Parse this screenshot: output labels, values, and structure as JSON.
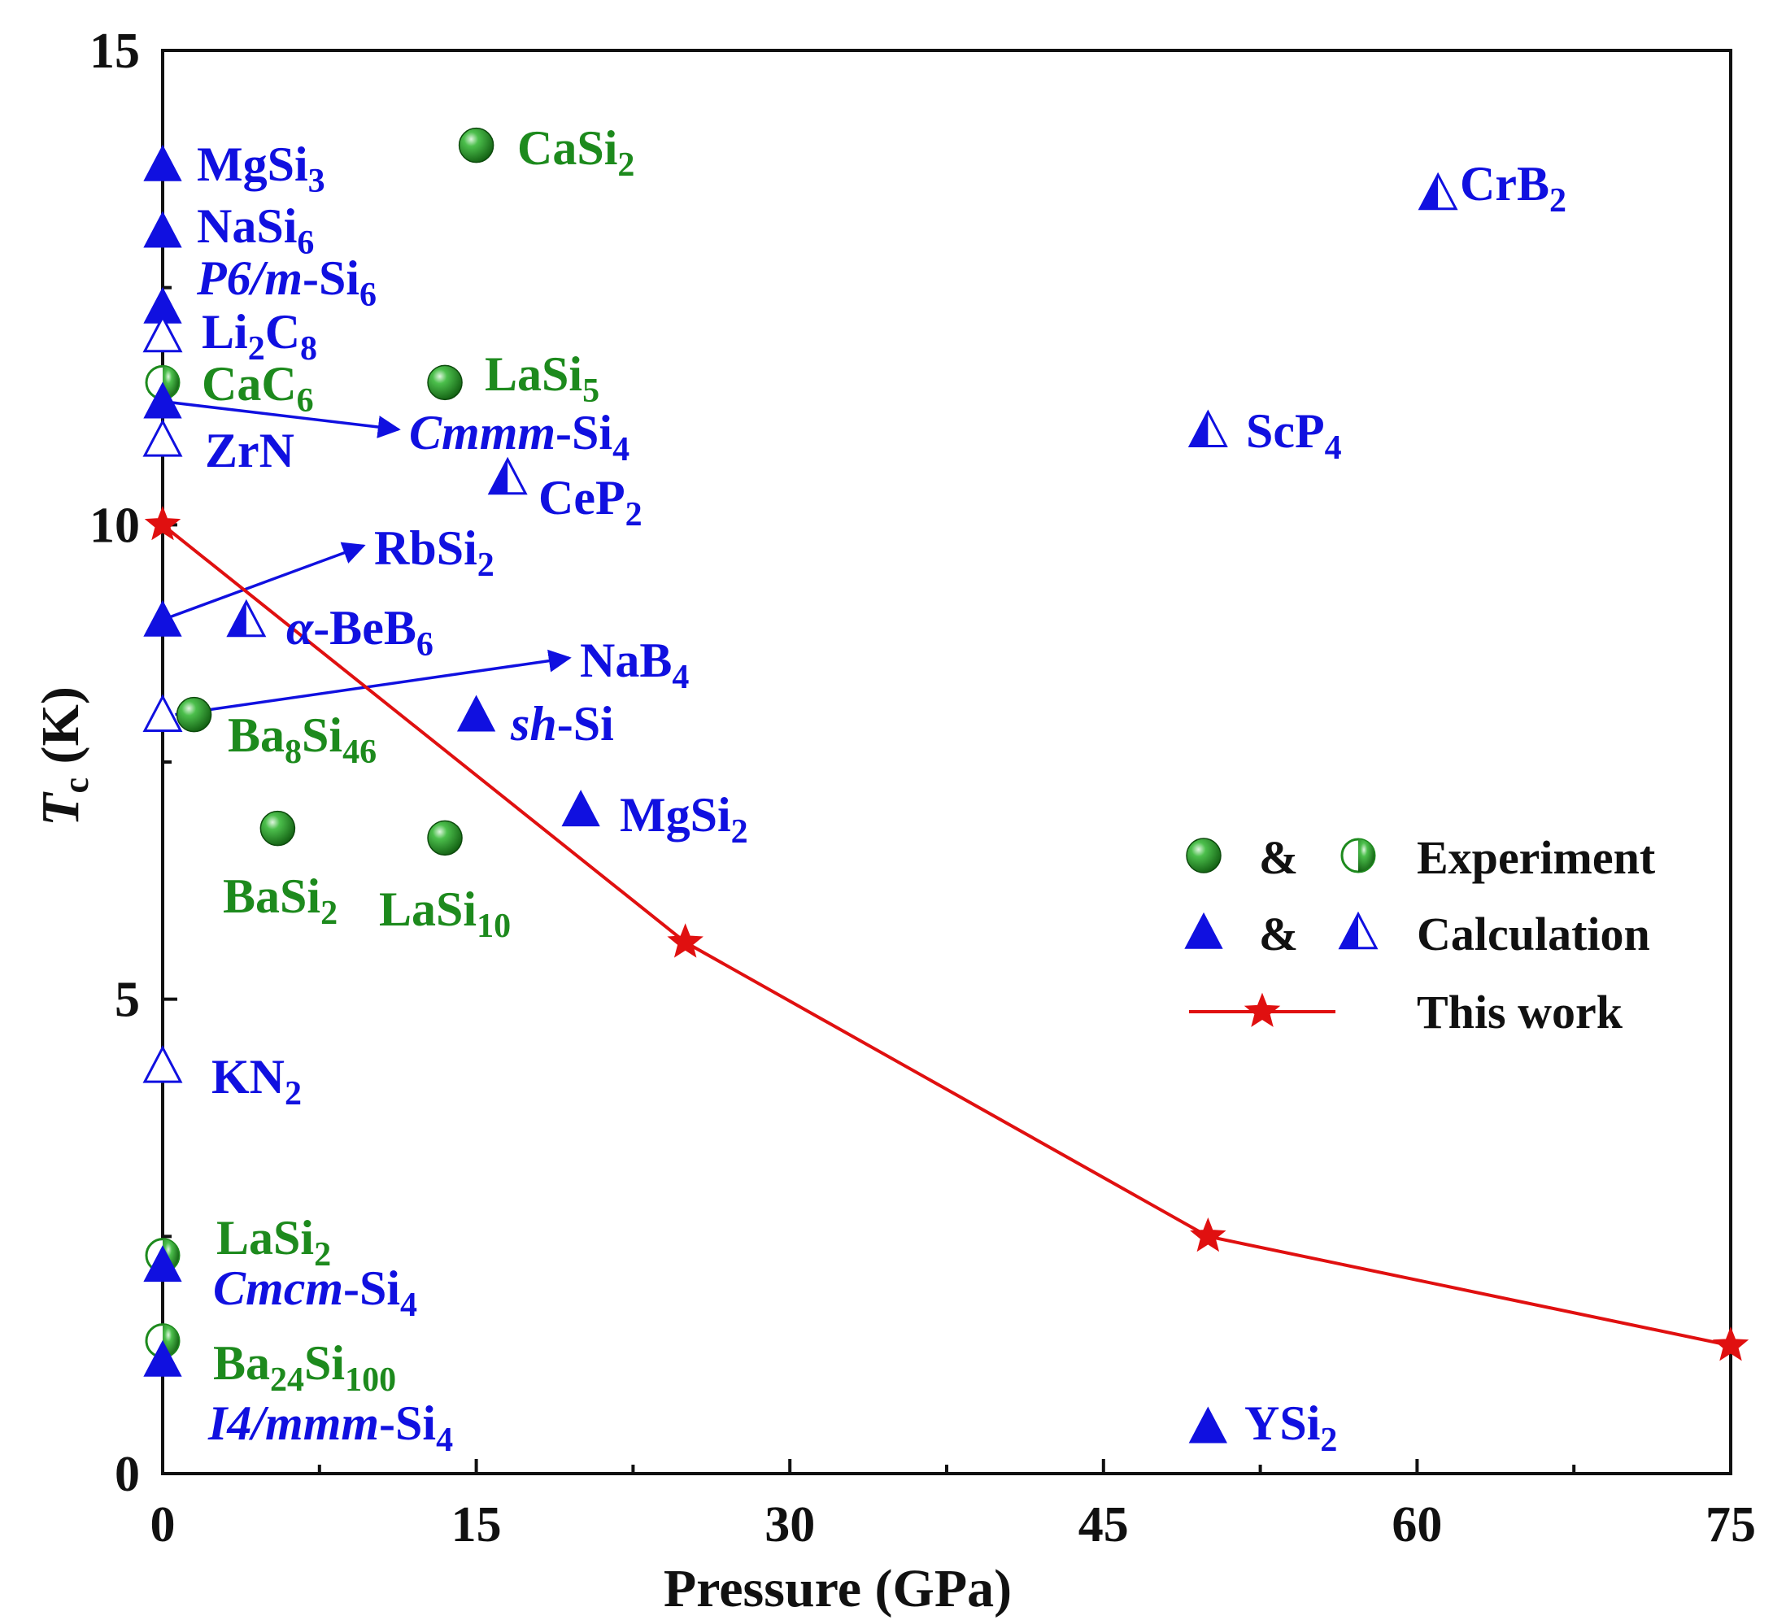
{
  "chart_data": {
    "type": "scatter",
    "xlabel": "Pressure (GPa)",
    "ylabel_main": "T",
    "ylabel_sub": "c",
    "ylabel_rest": " (K)",
    "xlim": [
      0,
      75
    ],
    "ylim": [
      0,
      15
    ],
    "xticks": [
      0,
      15,
      30,
      45,
      60,
      75
    ],
    "yticks": [
      0,
      5,
      10,
      15
    ],
    "xtick_labels": [
      "0",
      "15",
      "30",
      "45",
      "60",
      "75"
    ],
    "ytick_labels": [
      "0",
      "5",
      "10",
      "15"
    ],
    "colors": {
      "experiment": "#1d8a1d",
      "calculation": "#1010e0",
      "this_work": "#e01010"
    },
    "this_work": {
      "x": [
        0,
        25,
        50,
        75
      ],
      "y": [
        10.0,
        5.6,
        2.5,
        1.35
      ]
    },
    "points": [
      {
        "label": "MgSi₃",
        "x": 0,
        "y": 13.8,
        "marker": "triangle"
      },
      {
        "label": "NaSi₆",
        "x": 0,
        "y": 13.1,
        "marker": "triangle"
      },
      {
        "label": "P6/m-Si₆",
        "x": 0,
        "y": 12.3,
        "marker": "triangle"
      },
      {
        "label": "Li₂C₈",
        "x": 0,
        "y": 12.0,
        "marker": "triangle-open"
      },
      {
        "label": "CaC₆",
        "x": 0,
        "y": 11.5,
        "marker": "sphere-half"
      },
      {
        "label": "Cmmm-Si₄",
        "x": 0,
        "y": 11.3,
        "marker": "triangle"
      },
      {
        "label": "ZrN",
        "x": 0,
        "y": 10.9,
        "marker": "triangle-open"
      },
      {
        "label": "RbSi₂",
        "x": 0,
        "y": 9.0,
        "marker": "triangle"
      },
      {
        "label": "NaB₄",
        "x": 0,
        "y": 8.0,
        "marker": "triangle-open"
      },
      {
        "label": "KN₂",
        "x": 0,
        "y": 4.3,
        "marker": "triangle-open"
      },
      {
        "label": "LaSi₂",
        "x": 0,
        "y": 2.3,
        "marker": "sphere-half"
      },
      {
        "label": "Cmcm-Si₄",
        "x": 0,
        "y": 2.2,
        "marker": "triangle"
      },
      {
        "label": "Ba₂₄Si₁₀₀",
        "x": 0,
        "y": 1.4,
        "marker": "sphere-half"
      },
      {
        "label": "I4/mmm-Si₄",
        "x": 0,
        "y": 1.2,
        "marker": "triangle"
      },
      {
        "label": "CaSi₂",
        "x": 15,
        "y": 14.0,
        "marker": "sphere"
      },
      {
        "label": "LaSi₅",
        "x": 13.5,
        "y": 11.5,
        "marker": "sphere"
      },
      {
        "label": "CeP₂",
        "x": 16.5,
        "y": 10.5,
        "marker": "triangle-half"
      },
      {
        "label": "α-BeB₆",
        "x": 4,
        "y": 9.0,
        "marker": "triangle-half"
      },
      {
        "label": "Ba₈Si₄₆",
        "x": 1.5,
        "y": 8.0,
        "marker": "sphere"
      },
      {
        "label": "sh-Si",
        "x": 15,
        "y": 8.0,
        "marker": "triangle"
      },
      {
        "label": "MgSi₂",
        "x": 20,
        "y": 7.0,
        "marker": "triangle"
      },
      {
        "label": "BaSi₂",
        "x": 5.5,
        "y": 6.8,
        "marker": "sphere"
      },
      {
        "label": "LaSi₁₀",
        "x": 13.5,
        "y": 6.7,
        "marker": "sphere"
      },
      {
        "label": "CrB₂",
        "x": 61,
        "y": 13.5,
        "marker": "triangle-half"
      },
      {
        "label": "ScP₄",
        "x": 50,
        "y": 11.0,
        "marker": "triangle-half"
      },
      {
        "label": "YSi₂",
        "x": 50,
        "y": 0.5,
        "marker": "triangle"
      }
    ],
    "legend": {
      "position": "right",
      "items": [
        {
          "text": "Experiment",
          "amp": "&",
          "markers": [
            "sphere",
            "sphere-half"
          ]
        },
        {
          "text": "Calculation",
          "amp": "&",
          "markers": [
            "triangle",
            "triangle-half"
          ]
        },
        {
          "text": "This work",
          "amp": "",
          "markers": [
            "star-line"
          ]
        }
      ]
    }
  }
}
